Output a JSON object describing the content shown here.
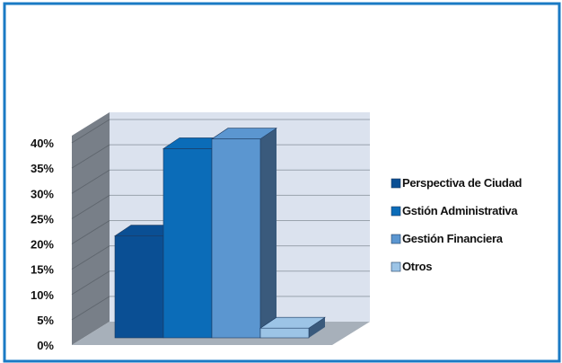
{
  "colors": {
    "frame": "#1a7ac4",
    "wall": "#dbe2ee",
    "side_wall": "#787f88",
    "floor": "#a7b0ba",
    "grid": "#9aa3ad"
  },
  "chart_data": {
    "type": "bar",
    "title": "",
    "xlabel": "",
    "ylabel": "",
    "categories": [
      "Perspectiva de Ciudad",
      "Gstión Administrativa",
      "Gestión Financiera",
      "Otros"
    ],
    "values": [
      21,
      39,
      41,
      2
    ],
    "bar_colors": [
      "#0a4f94",
      "#0b6cb8",
      "#5b96d0",
      "#9cc4e6"
    ],
    "ylim": [
      0,
      40
    ],
    "y_ticks": [
      "0%",
      "5%",
      "10%",
      "15%",
      "20%",
      "25%",
      "30%",
      "35%",
      "40%"
    ],
    "y_tick_values": [
      0,
      5,
      10,
      15,
      20,
      25,
      30,
      35,
      40
    ],
    "grid": true,
    "three_d": true,
    "legend_position": "right"
  }
}
